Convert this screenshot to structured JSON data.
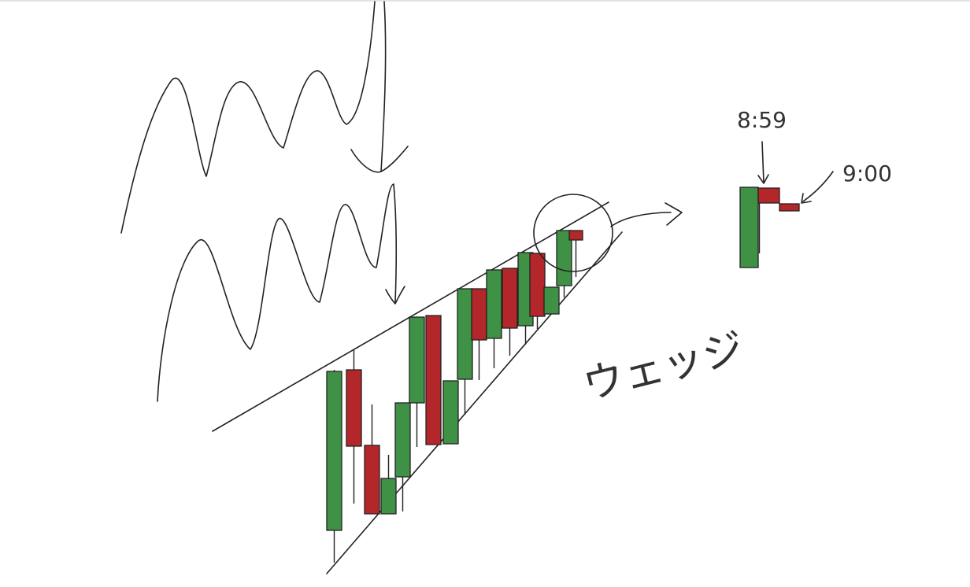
{
  "labels": {
    "time_a": "8:59",
    "time_b": "9:00",
    "pattern_name": "ウェッジ"
  },
  "colors": {
    "bullish": "#3f9145",
    "bearish": "#b3262a",
    "outline": "#222222",
    "background": "#ffffff"
  }
}
